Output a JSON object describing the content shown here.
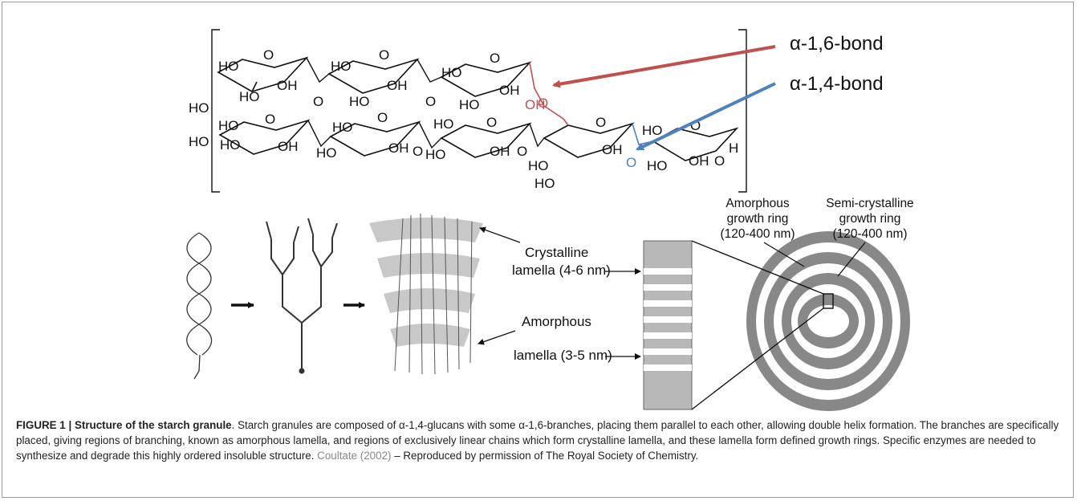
{
  "figure": {
    "bond_labels": {
      "alpha16": "α-1,6-bond",
      "alpha14": "α-1,4-bond"
    },
    "molecule_labels": {
      "ho": "HO",
      "oh": "OH",
      "o": "O",
      "h": "H"
    },
    "lamella_labels": {
      "crystalline_line1": "Crystalline",
      "crystalline_line2": "lamella (4-6 nm)",
      "amorphous_line1": "Amorphous",
      "amorphous_line2": "lamella (3-5 nm)"
    },
    "ring_labels": {
      "amorphous_line1": "Amorphous",
      "amorphous_line2": "growth ring",
      "amorphous_line3": "(120-400 nm)",
      "semicryst_line1": "Semi-crystalline",
      "semicryst_line2": "growth ring",
      "semicryst_line3": "(120-400 nm)"
    },
    "colors": {
      "alpha16_arrow": "#c0504d",
      "alpha14_arrow": "#4f81bd",
      "ring_gray": "#9a9a9a",
      "ink": "#111111"
    }
  },
  "caption": {
    "label": "FIGURE 1 | Structure of the starch granule",
    "text_a": ". Starch granules are composed of α-1,4-glucans with some α-1,6-branches, placing them parallel to each other, allowing double helix formation. The branches are specifically placed, giving regions of branching, known as amorphous lamella, and regions of exclusively linear chains which form crystalline lamella, and these lamella form defined growth rings. Specific enzymes are needed to synthesize and degrade this highly ordered insoluble structure. ",
    "reference": "Coultate (2002)",
    "text_b": " – Reproduced by permission of The Royal Society of Chemistry."
  }
}
